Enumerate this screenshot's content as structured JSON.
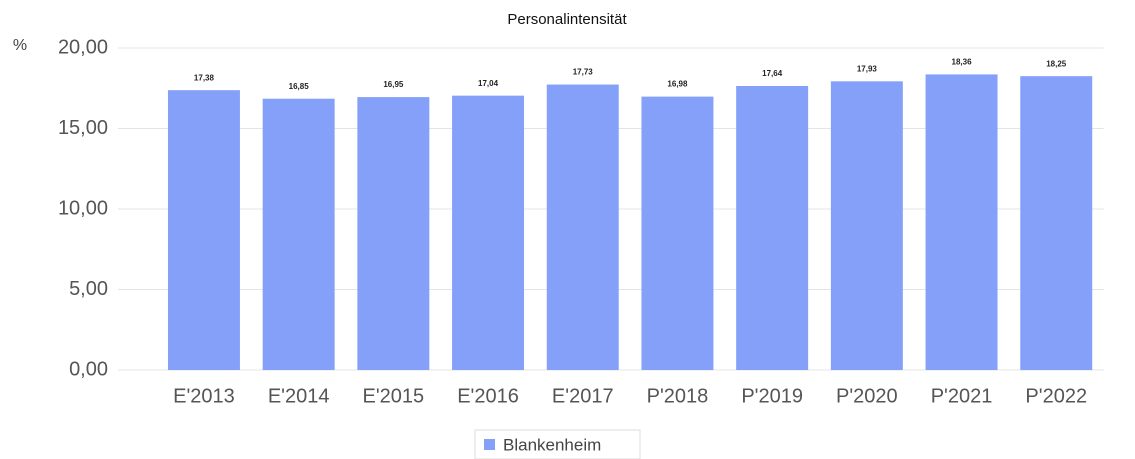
{
  "chart_data": {
    "type": "bar",
    "title": "Personalintensität",
    "y_label": "%",
    "categories": [
      "E'2013",
      "E'2014",
      "E'2015",
      "E'2016",
      "E'2017",
      "P'2018",
      "P'2019",
      "P'2020",
      "P'2021",
      "P'2022"
    ],
    "series": [
      {
        "name": "Blankenheim",
        "color": "#84a0f8",
        "values": [
          17.38,
          16.85,
          16.95,
          17.04,
          17.73,
          16.98,
          17.64,
          17.93,
          18.36,
          18.25
        ],
        "value_labels": [
          "17,38",
          "16,85",
          "16,95",
          "17,04",
          "17,73",
          "16,98",
          "17,64",
          "17,93",
          "18,36",
          "18,25"
        ]
      }
    ],
    "ylim": [
      0,
      20
    ],
    "yticks": [
      {
        "value": 0,
        "label": "0,00"
      },
      {
        "value": 5,
        "label": "5,00"
      },
      {
        "value": 10,
        "label": "10,00"
      },
      {
        "value": 15,
        "label": "15,00"
      },
      {
        "value": 20,
        "label": "20,00"
      }
    ],
    "grid": true,
    "legend": "bottom"
  }
}
